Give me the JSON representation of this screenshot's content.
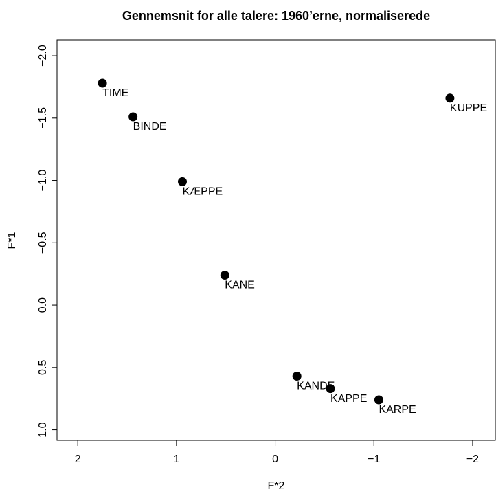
{
  "chart_data": {
    "type": "scatter",
    "title": "Gennemsnit for alle talere: 1960’erne, normaliserede",
    "x_label": "F*2",
    "y_label": "F*1",
    "xlim": [
      2.21,
      -2.23
    ],
    "ylim": [
      1.085,
      -2.127
    ],
    "xticks": [
      2,
      1,
      {
        "value": 0,
        "label": "0"
      },
      {
        "value": -1,
        "label": "−1"
      },
      {
        "value": -2,
        "label": "−2"
      }
    ],
    "yticks": [
      {
        "value": -2,
        "label": "−2.0"
      },
      {
        "value": -1.5,
        "label": "−1.5"
      },
      {
        "value": -1,
        "label": "−1.0"
      },
      {
        "value": -0.5,
        "label": "−0.5"
      },
      {
        "value": 0,
        "label": "0.0"
      },
      0.5,
      {
        "value": 1,
        "label": "1.0"
      }
    ],
    "x": [
      1.75,
      1.44,
      0.94,
      0.51,
      -0.22,
      -0.56,
      -1.05,
      -1.77
    ],
    "series": [
      {
        "color": "#000000",
        "values": [
          -1.78,
          -1.51,
          -0.99,
          -0.24,
          0.57,
          0.67,
          0.76,
          -1.66
        ],
        "point_labels": [
          "TIME",
          "BINDE",
          "KÆPPE",
          "KANE",
          "KANDE",
          "KAPPE",
          "KARPE",
          "KUPPE"
        ]
      }
    ]
  }
}
